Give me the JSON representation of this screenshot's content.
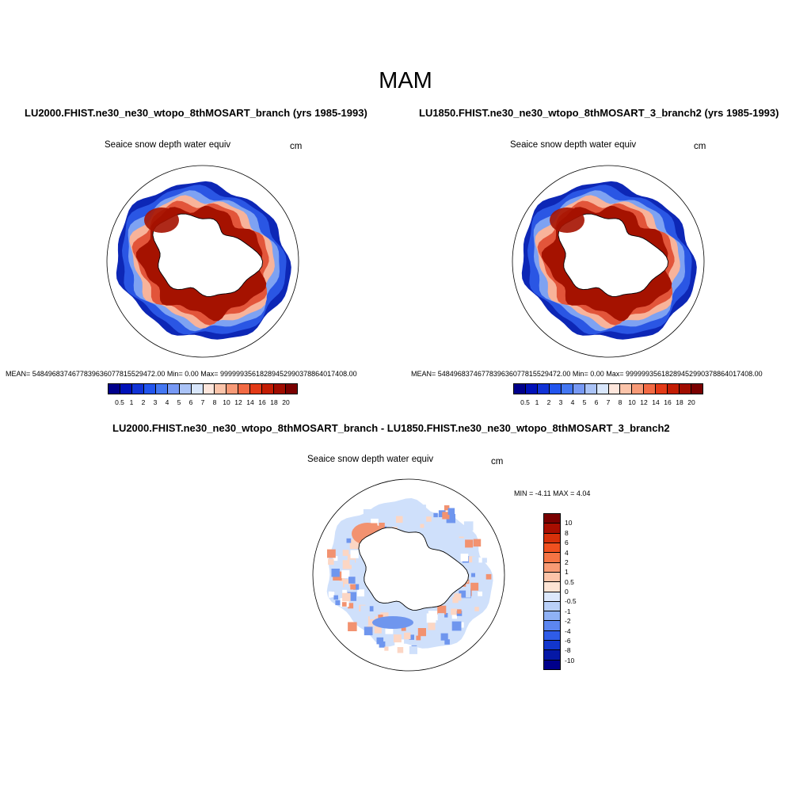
{
  "title": "MAM",
  "panels": {
    "left": {
      "title": "LU2000.FHIST.ne30_ne30_wtopo_8thMOSART_branch (yrs 1985-1993)",
      "variable": "Seaice snow depth water equiv",
      "units": "cm",
      "stats": "MEAN= 5484968374677839636077815529472.00  Min=    0.00  Max= 99999935618289452990378864017408.00"
    },
    "right": {
      "title": "LU1850.FHIST.ne30_ne30_wtopo_8thMOSART_3_branch2 (yrs 1985-1993)",
      "variable": "Seaice snow depth water equiv",
      "units": "cm",
      "stats": "MEAN= 5484968374677839636077815529472.00  Min=    0.00  Max= 99999935618289452990378864017408.00"
    },
    "diff": {
      "title": "LU2000.FHIST.ne30_ne30_wtopo_8thMOSART_branch - LU1850.FHIST.ne30_ne30_wtopo_8thMOSART_3_branch2",
      "variable": "Seaice snow depth water equiv",
      "units": "cm",
      "stats": "MIN =  -4.11 MAX =   4.04"
    }
  },
  "colorbar_main": {
    "labels": [
      "0.5",
      "1",
      "2",
      "3",
      "4",
      "5",
      "6",
      "7",
      "8",
      "10",
      "12",
      "14",
      "16",
      "18",
      "20"
    ],
    "colors": [
      "#00008b",
      "#0011b8",
      "#1133d6",
      "#2255ee",
      "#4477f2",
      "#7799f4",
      "#aac3f7",
      "#d8e6fb",
      "#fde6dc",
      "#fbc4aa",
      "#f79a77",
      "#f26a44",
      "#e33a17",
      "#c31d04",
      "#a00c00",
      "#7a0000"
    ]
  },
  "colorbar_diff": {
    "labels": [
      "10",
      "8",
      "6",
      "4",
      "2",
      "1",
      "0.5",
      "0",
      "-0.5",
      "-1",
      "-2",
      "-4",
      "-6",
      "-8",
      "-10"
    ],
    "colors": [
      "#7a0000",
      "#a80e00",
      "#d6300a",
      "#f0501f",
      "#f57444",
      "#f89b74",
      "#fcc4a8",
      "#fde4d4",
      "#dce8fb",
      "#b9d0f8",
      "#8fb1f5",
      "#5c86f0",
      "#2f5ce8",
      "#1236cc",
      "#0518a6",
      "#00008b"
    ]
  },
  "map_colors": {
    "snow_high": "#a51200",
    "snow_mid": "#e2553a",
    "snow_low": "#f8b39a",
    "edge_light": "#7ea2f2",
    "edge_mid": "#2a56e4",
    "edge_dark": "#0d27b6",
    "diff_pos": "#f29270",
    "diff_pos_light": "#fcd6c4",
    "diff_neg": "#6f96ee",
    "diff_neg_light": "#cfe0fb"
  }
}
